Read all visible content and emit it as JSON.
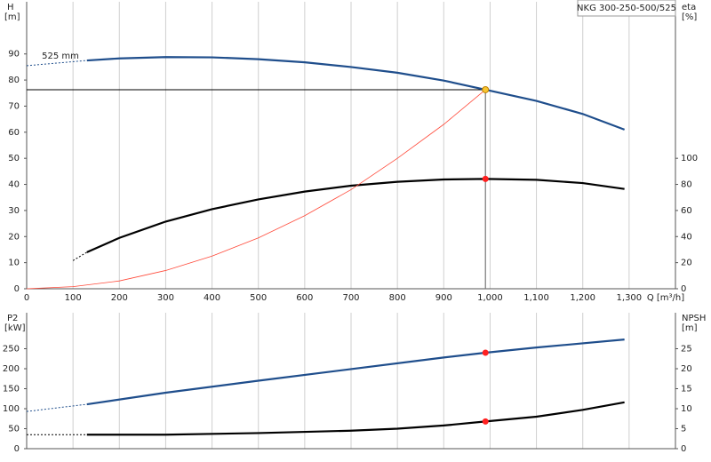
{
  "chart_data": [
    {
      "type": "line",
      "title": "NKG 300-250-500/525",
      "ylabel": "H",
      "yunit": "[m]",
      "y2label": "eta",
      "y2unit": "[%]",
      "xlabel": "Q [m³/h]",
      "annotation": {
        "text": "525 mm",
        "x": 100,
        "y": 87.5
      },
      "xlim": [
        0,
        1400
      ],
      "xticks": [
        0,
        100,
        200,
        300,
        400,
        500,
        600,
        700,
        800,
        900,
        {
          "value": 1000,
          "label": "1,000"
        },
        {
          "value": 1100,
          "label": "1,100"
        },
        {
          "value": 1200,
          "label": "1,200"
        },
        {
          "value": 1300,
          "label": "1,300"
        }
      ],
      "ylim": [
        0,
        110
      ],
      "yticks": [
        0,
        10,
        20,
        30,
        40,
        50,
        60,
        70,
        80,
        90
      ],
      "y2lim": [
        0,
        220
      ],
      "y2ticks": [
        0,
        20,
        40,
        60,
        80,
        100
      ],
      "grid": "x",
      "series": [
        {
          "color": "#1f4e8c",
          "style": "dashed",
          "x": [
            0,
            130
          ],
          "values": [
            85.5,
            87.5
          ]
        },
        {
          "color": "#1f4e8c",
          "style": "solid",
          "x": [
            130,
            200,
            300,
            400,
            500,
            600,
            700,
            800,
            900,
            990,
            1100,
            1200,
            1290
          ],
          "values": [
            87.5,
            88.3,
            88.8,
            88.7,
            88,
            86.8,
            85,
            82.8,
            79.8,
            76.3,
            72,
            67,
            61
          ]
        },
        {
          "color": "#000000",
          "style": "dashed",
          "axis": "y2",
          "x": [
            100,
            130
          ],
          "values": [
            21.6,
            28
          ]
        },
        {
          "color": "#000000",
          "style": "solid",
          "axis": "y2",
          "x": [
            130,
            200,
            300,
            400,
            500,
            600,
            700,
            800,
            900,
            990,
            1100,
            1200,
            1290
          ],
          "values": [
            28,
            39,
            51.5,
            61,
            68.5,
            74.5,
            79,
            82,
            83.8,
            84.2,
            83.5,
            81,
            76.5
          ]
        },
        {
          "color": "#ff4a3a",
          "style": "thin",
          "x": [
            0,
            100,
            200,
            300,
            400,
            500,
            600,
            700,
            800,
            900,
            990
          ],
          "values": [
            0,
            0.8,
            3,
            7,
            12.5,
            19.5,
            28,
            38,
            50,
            63,
            76.3
          ]
        }
      ],
      "duty_point": {
        "x": 990,
        "y": 76.3
      },
      "markers": [
        {
          "x": 990,
          "y": 76.3,
          "color": "#f7c531"
        },
        {
          "x": 990,
          "y": 84.2,
          "axis": "y2",
          "color": "#ff2020"
        }
      ]
    },
    {
      "type": "line",
      "ylabel": "P2",
      "yunit": "[kW]",
      "y2label": "NPSH",
      "y2unit": "[m]",
      "xlim": [
        0,
        1400
      ],
      "xticks": [
        0,
        100,
        200,
        300,
        400,
        500,
        600,
        700,
        800,
        900,
        1000,
        1100,
        1200,
        1300
      ],
      "ylim": [
        0,
        340
      ],
      "yticks": [
        0,
        50,
        100,
        150,
        200,
        250
      ],
      "y2lim": [
        0,
        34
      ],
      "y2ticks": [
        0,
        5,
        10,
        15,
        20,
        25
      ],
      "grid": "x",
      "series": [
        {
          "color": "#1f4e8c",
          "style": "dashed",
          "x": [
            0,
            130
          ],
          "values": [
            93,
            111
          ]
        },
        {
          "color": "#1f4e8c",
          "style": "solid",
          "x": [
            130,
            300,
            500,
            700,
            900,
            990,
            1100,
            1290
          ],
          "values": [
            111,
            140,
            170,
            199,
            228,
            240,
            253,
            273
          ]
        },
        {
          "color": "#000000",
          "style": "dashed",
          "axis": "y2",
          "x": [
            0,
            130
          ],
          "values": [
            3.5,
            3.5
          ]
        },
        {
          "color": "#000000",
          "style": "solid",
          "axis": "y2",
          "x": [
            130,
            300,
            500,
            700,
            800,
            900,
            990,
            1100,
            1200,
            1290
          ],
          "values": [
            3.5,
            3.5,
            3.9,
            4.5,
            5,
            5.8,
            6.8,
            8,
            9.7,
            11.6
          ]
        }
      ],
      "markers": [
        {
          "x": 990,
          "y": 240,
          "color": "#ff2020"
        },
        {
          "x": 990,
          "y": 6.8,
          "axis": "y2",
          "color": "#ff2020"
        }
      ]
    }
  ]
}
